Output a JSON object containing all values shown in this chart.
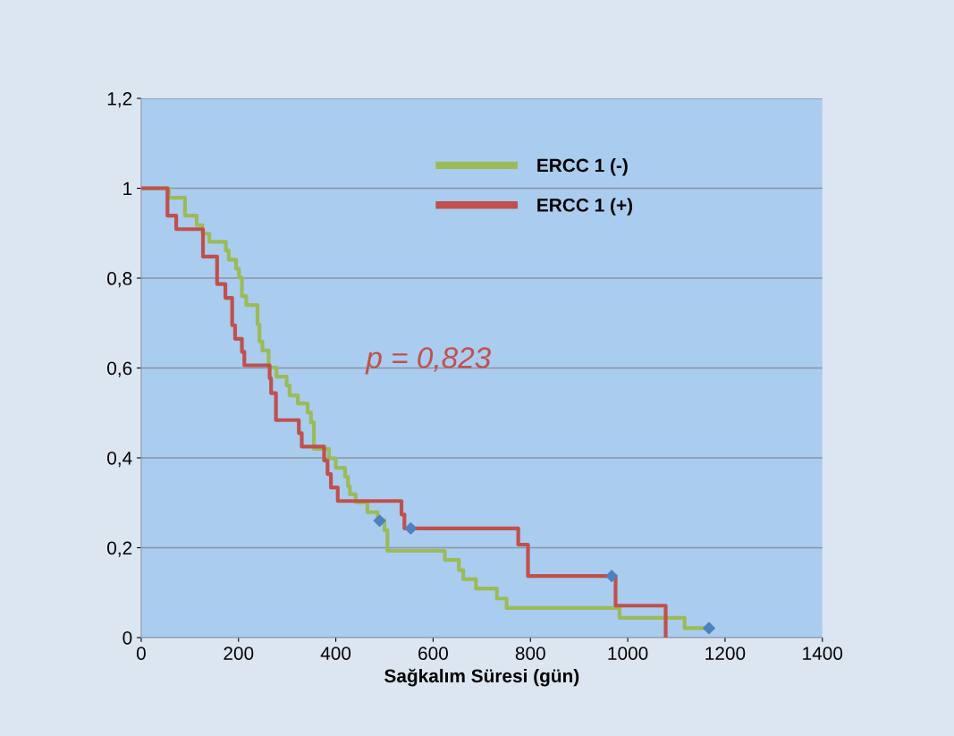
{
  "chart_data": {
    "type": "step",
    "xlabel": "Sağkalım Süresi (gün)",
    "xlim": [
      0,
      1400
    ],
    "xticks": [
      0,
      200,
      400,
      600,
      800,
      1000,
      1200,
      1400
    ],
    "ylim": [
      0,
      1.2
    ],
    "yticks": [
      0,
      {
        "value": 0.2,
        "label": "0,2"
      },
      {
        "value": 0.4,
        "label": "0,4"
      },
      {
        "value": 0.6,
        "label": "0,6"
      },
      {
        "value": 0.8,
        "label": "0,8"
      },
      1,
      {
        "value": 1.2,
        "label": "1,2"
      }
    ],
    "grid": "y",
    "legend": "top",
    "annotations": [
      "p = 0,823"
    ],
    "series": [
      {
        "name": "ERCC 1 (-)",
        "color": "#9bbb59",
        "x": [
          0,
          57,
          90,
          114,
          126,
          140,
          174,
          180,
          195,
          201,
          207,
          216,
          239,
          243,
          249,
          262,
          278,
          299,
          305,
          322,
          342,
          349,
          355,
          386,
          400,
          419,
          425,
          429,
          441,
          465,
          486,
          500,
          506,
          624,
          653,
          662,
          688,
          731,
          751,
          983,
          1117,
          1167
        ],
        "values": [
          1.0,
          0.979,
          0.939,
          0.918,
          0.899,
          0.881,
          0.861,
          0.841,
          0.821,
          0.801,
          0.76,
          0.74,
          0.697,
          0.659,
          0.639,
          0.601,
          0.581,
          0.561,
          0.539,
          0.521,
          0.501,
          0.479,
          0.42,
          0.399,
          0.378,
          0.358,
          0.337,
          0.319,
          0.301,
          0.279,
          0.261,
          0.239,
          0.193,
          0.173,
          0.15,
          0.13,
          0.109,
          0.087,
          0.066,
          0.044,
          0.021,
          0.021
        ]
      },
      {
        "name": "ERCC 1 (+)",
        "color": "#c0504d",
        "x": [
          0,
          54,
          72,
          127,
          156,
          173,
          187,
          193,
          207,
          212,
          264,
          267,
          277,
          324,
          330,
          376,
          383,
          390,
          404,
          535,
          541,
          775,
          795,
          975,
          1078
        ],
        "values": [
          1.0,
          0.939,
          0.909,
          0.848,
          0.787,
          0.756,
          0.695,
          0.665,
          0.636,
          0.606,
          0.577,
          0.544,
          0.484,
          0.455,
          0.425,
          0.394,
          0.364,
          0.334,
          0.304,
          0.274,
          0.243,
          0.207,
          0.137,
          0.071,
          0
        ]
      },
      {
        "type": "scatter",
        "marker": "diamond",
        "color": "#4f81bd",
        "x": [
          490,
          554,
          967,
          1167
        ],
        "values": [
          0.26,
          0.243,
          0.137,
          0.021
        ]
      }
    ]
  }
}
